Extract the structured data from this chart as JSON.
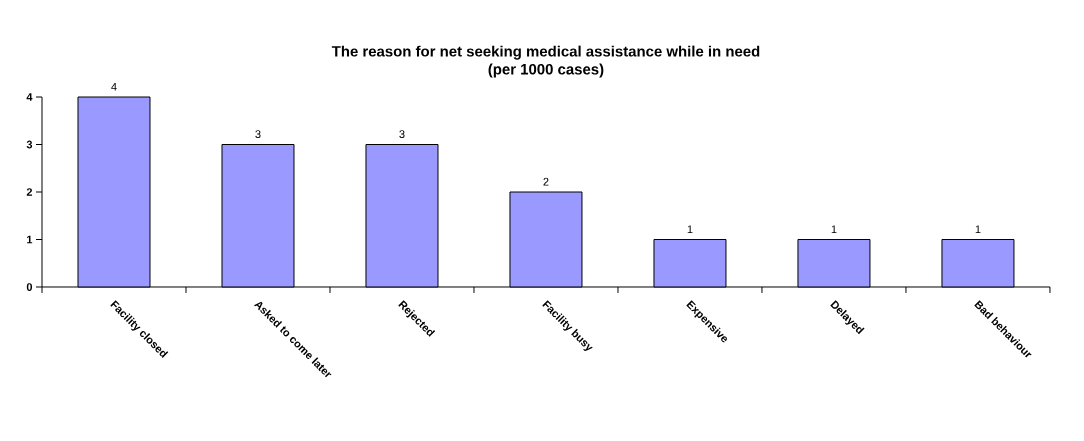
{
  "chart_data": {
    "type": "bar",
    "title": "The reason for net seeking medical assistance while in need\n(per 1000 cases)",
    "categories": [
      "Facility closed",
      "Asked to come later",
      "Rejected",
      "Facility busy",
      "Expensive",
      "Delayed",
      "Bad behaviour"
    ],
    "values": [
      4,
      3,
      3,
      2,
      1,
      1,
      1
    ],
    "color": "#9999ff",
    "ylim": [
      0,
      4
    ],
    "yticks": [
      0,
      1,
      2,
      3,
      4
    ],
    "grid": false,
    "data_labels": true
  }
}
